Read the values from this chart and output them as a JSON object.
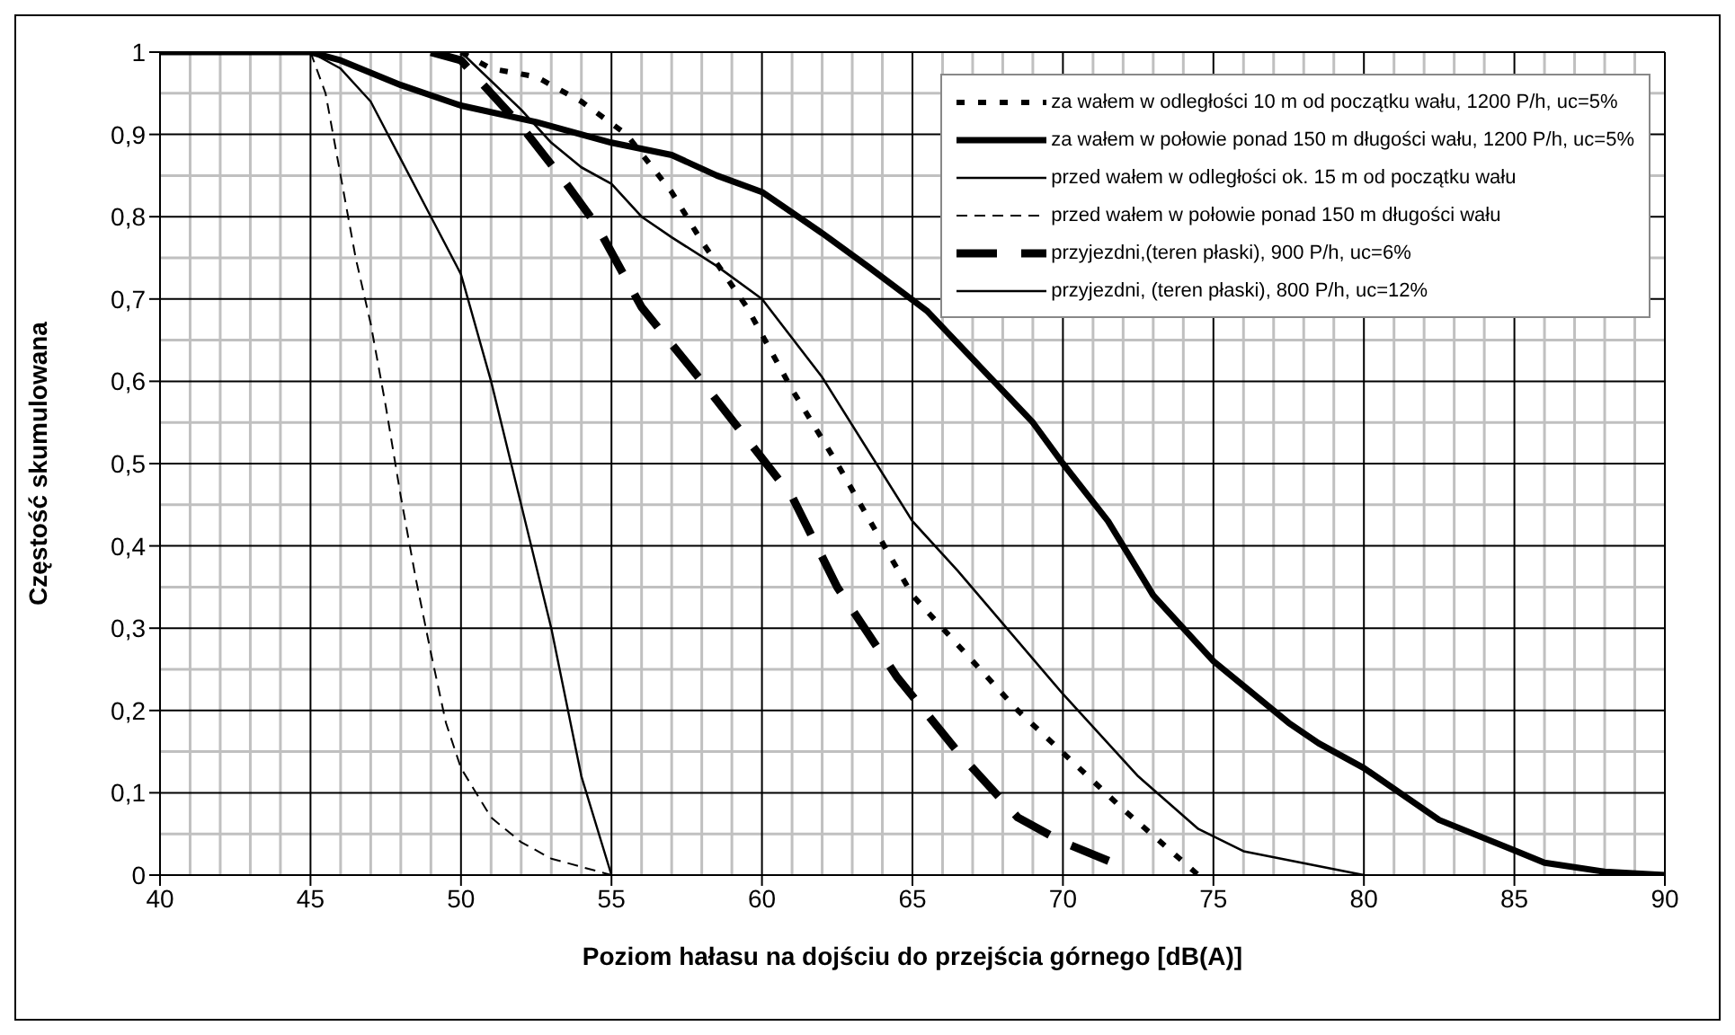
{
  "chart_data": {
    "type": "line",
    "xlabel": "Poziom hałasu na dojściu do przejścia górnego [dB(A)]",
    "ylabel": "Częstość skumulowana",
    "xlim": [
      40,
      90
    ],
    "xticks": [
      40,
      45,
      50,
      55,
      60,
      65,
      70,
      75,
      80,
      85,
      90
    ],
    "ylim": [
      0,
      1
    ],
    "yticks": [
      0,
      {
        "value": 0.1,
        "label": "0,1"
      },
      {
        "value": 0.2,
        "label": "0,2"
      },
      {
        "value": 0.3,
        "label": "0,3"
      },
      {
        "value": 0.4,
        "label": "0,4"
      },
      {
        "value": 0.5,
        "label": "0,5"
      },
      {
        "value": 0.6,
        "label": "0,6"
      },
      {
        "value": 0.7,
        "label": "0,7"
      },
      {
        "value": 0.8,
        "label": "0,8"
      },
      {
        "value": 0.9,
        "label": "0,9"
      },
      1
    ],
    "grid": true,
    "legend": "top right",
    "marker": "none",
    "series": [
      {
        "name": "za wałem w odległości 10 m od początku wału, 1200 P/h, uc=5%",
        "color": "#000000",
        "line_style": "dotted",
        "x": [
          50,
          51,
          52.5,
          54,
          55.5,
          57,
          58,
          59.5,
          61,
          62.5,
          65,
          68.5,
          72,
          74.5
        ],
        "values": [
          1,
          0.98,
          0.97,
          0.94,
          0.9,
          0.83,
          0.77,
          0.69,
          0.59,
          0.5,
          0.34,
          0.2,
          0.08,
          0
        ]
      },
      {
        "name": "za wałem w połowie ponad 150 m długości wału, 1200 P/h, uc=5%",
        "color": "#000000",
        "line_style": "solid",
        "x": [
          40,
          45,
          46,
          48,
          50,
          52.5,
          55,
          57,
          58.5,
          60,
          62,
          63.5,
          65.5,
          69,
          70,
          71.5,
          73,
          75,
          77.5,
          78.5,
          80,
          82.5,
          85,
          86,
          88,
          90
        ],
        "values": [
          1,
          1,
          0.99,
          0.96,
          0.935,
          0.915,
          0.89,
          0.875,
          0.85,
          0.83,
          0.78,
          0.74,
          0.685,
          0.55,
          0.5,
          0.43,
          0.34,
          0.26,
          0.185,
          0.16,
          0.13,
          0.067,
          0.03,
          0.015,
          0.004,
          0
        ]
      },
      {
        "name": "przed wałem w odległości ok. 15 m od początku wału",
        "color": "#000000",
        "line_style": "solid",
        "x": [
          45,
          46,
          47,
          48,
          49,
          50,
          51,
          52,
          53,
          54,
          55
        ],
        "values": [
          1,
          0.98,
          0.94,
          0.87,
          0.8,
          0.73,
          0.6,
          0.45,
          0.3,
          0.12,
          0
        ]
      },
      {
        "name": "przed wałem w połowie ponad 150 m długości wału",
        "color": "#000000",
        "line_style": "dashed",
        "x": [
          45,
          45.5,
          46,
          46.5,
          47,
          47.5,
          48,
          48.5,
          49,
          49.5,
          50,
          51,
          52,
          53,
          55
        ],
        "values": [
          1,
          0.95,
          0.85,
          0.75,
          0.67,
          0.57,
          0.46,
          0.36,
          0.27,
          0.185,
          0.13,
          0.07,
          0.04,
          0.02,
          0
        ]
      },
      {
        "name": "przyjezdni,(teren płaski), 900 P/h, uc=6%",
        "color": "#000000",
        "line_style": "dashed",
        "x": [
          49,
          50,
          52,
          53.5,
          54.5,
          56,
          58,
          61,
          62.5,
          64.5,
          66.5,
          68.5,
          70,
          72
        ],
        "values": [
          1,
          0.99,
          0.91,
          0.84,
          0.79,
          0.69,
          0.6,
          0.46,
          0.35,
          0.24,
          0.15,
          0.07,
          0.04,
          0.01
        ]
      },
      {
        "name": "przyjezdni, (teren płaski), 800 P/h, uc=12%",
        "color": "#000000",
        "line_style": "solid",
        "x": [
          50,
          52,
          53,
          54,
          55,
          56,
          57,
          58.5,
          60,
          62,
          65,
          66.5,
          70,
          72.5,
          74.5,
          76,
          80
        ],
        "values": [
          1,
          0.93,
          0.89,
          0.86,
          0.84,
          0.8,
          0.775,
          0.74,
          0.7,
          0.605,
          0.43,
          0.37,
          0.22,
          0.12,
          0.056,
          0.029,
          0
        ]
      }
    ]
  }
}
